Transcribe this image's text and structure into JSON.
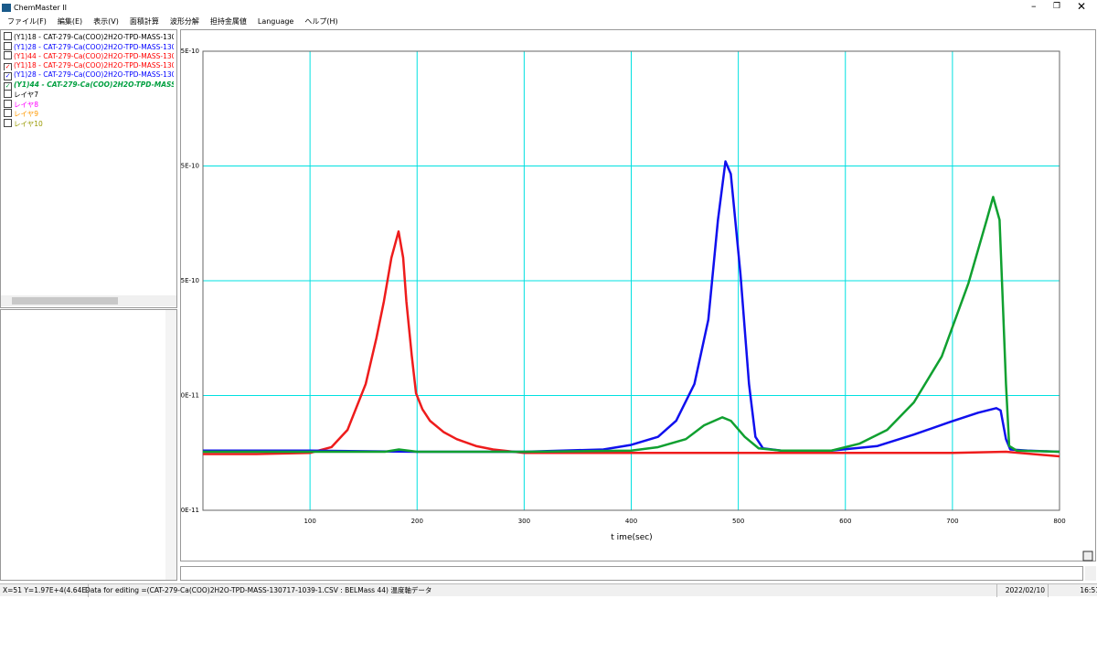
{
  "window": {
    "title": "ChemMaster II"
  },
  "menu": [
    "ファイル(F)",
    "編集(E)",
    "表示(V)",
    "面積計算",
    "波形分解",
    "担持金属値",
    "Language",
    "ヘルプ(H)"
  ],
  "layers": [
    {
      "label": "(Y1)18 - CAT-279-Ca(COO)2H2O-TPD-MASS-130717-",
      "checked": false,
      "color": "#000000"
    },
    {
      "label": "(Y1)28 - CAT-279-Ca(COO)2H2O-TPD-MASS-130717-",
      "checked": false,
      "color": "#0000ff"
    },
    {
      "label": "(Y1)44 - CAT-279-Ca(COO)2H2O-TPD-MASS-130717-",
      "checked": false,
      "color": "#ff0000"
    },
    {
      "label": "(Y1)18 - CAT-279-Ca(COO)2H2O-TPD-MASS-130717-",
      "checked": true,
      "color": "#ff0000"
    },
    {
      "label": "(Y1)28 - CAT-279-Ca(COO)2H2O-TPD-MASS-130717-",
      "checked": true,
      "color": "#0000ff"
    },
    {
      "label": "(Y1)44 - CAT-279-Ca(COO)2H2O-TPD-MASS-1",
      "checked": true,
      "color": "#00a040"
    },
    {
      "label": "レイヤ7",
      "checked": false,
      "color": "#000000"
    },
    {
      "label": "レイヤ8",
      "checked": false,
      "color": "#ff00ff"
    },
    {
      "label": "レイヤ9",
      "checked": false,
      "color": "#ff9900"
    },
    {
      "label": "レイヤ10",
      "checked": false,
      "color": "#999900"
    }
  ],
  "chart_data": {
    "type": "line",
    "x_label": "t ime(sec)",
    "xlim": [
      0,
      800
    ],
    "xticks": [
      100,
      200,
      300,
      400,
      500,
      600,
      700,
      800
    ],
    "ylim": [
      -5e-11,
      3.5e-10
    ],
    "yticks": [
      {
        "value": -5e-11,
        "label": "-5.0E-11"
      },
      {
        "value": 5e-11,
        "label": "5.0E-11"
      },
      {
        "value": 1.5e-10,
        "label": "1.5E-10"
      },
      {
        "value": 2.5e-10,
        "label": "2.5E-10"
      },
      {
        "value": 3.5e-10,
        "label": "3.5E-10"
      }
    ],
    "grid": true,
    "grid_color": "#00e0e0",
    "series": [
      {
        "color": "#ee1c1c",
        "x": [
          0,
          50,
          100,
          120,
          135,
          152,
          162,
          169,
          176,
          182.7,
          187,
          190,
          195,
          199,
          205,
          212,
          225,
          237,
          255,
          271,
          300,
          400,
          500,
          600,
          700,
          750,
          800
        ],
        "values": [
          -1e-12,
          -1e-12,
          0,
          5e-12,
          2e-11,
          6e-11,
          1e-10,
          1.32e-10,
          1.7e-10,
          1.93e-10,
          1.7e-10,
          1.32e-10,
          8.5e-11,
          5.2e-11,
          3.8e-11,
          2.8e-11,
          1.8e-11,
          1.2e-11,
          6e-12,
          3e-12,
          0,
          0,
          0,
          0,
          0,
          1e-12,
          -3e-12
        ]
      },
      {
        "color": "#1010ee",
        "x": [
          0,
          100,
          200,
          300,
          374,
          400,
          425,
          442,
          459,
          472,
          481,
          488,
          493,
          502,
          510,
          516,
          523,
          540,
          587,
          630,
          664,
          698,
          724,
          741,
          745,
          750,
          754,
          770,
          800
        ],
        "values": [
          2e-12,
          2e-12,
          1e-12,
          1e-12,
          3e-12,
          7e-12,
          1.4e-11,
          2.8e-11,
          6e-11,
          1.16e-10,
          2.03e-10,
          2.54e-10,
          2.43e-10,
          1.56e-10,
          6e-11,
          1.4e-11,
          4e-12,
          2e-12,
          2e-12,
          6e-12,
          1.6e-11,
          2.7e-11,
          3.5e-11,
          3.9e-11,
          3.7e-11,
          1.2e-11,
          3e-12,
          2e-12,
          1e-12
        ]
      },
      {
        "color": "#10a030",
        "x": [
          0,
          100,
          170,
          183,
          200,
          300,
          400,
          425,
          451,
          468,
          485,
          493,
          506,
          519,
          540,
          587,
          613,
          639,
          664,
          690,
          715,
          732,
          738,
          744,
          747,
          750,
          753,
          760,
          800
        ],
        "values": [
          1e-12,
          1e-12,
          1e-12,
          3e-12,
          1e-12,
          1e-12,
          2e-12,
          5e-12,
          1.2e-11,
          2.4e-11,
          3.1e-11,
          2.8e-11,
          1.4e-11,
          4e-12,
          2e-12,
          2e-12,
          8e-12,
          2e-11,
          4.4e-11,
          8.4e-11,
          1.48e-10,
          2.03e-10,
          2.23e-10,
          2.03e-10,
          1.32e-10,
          6e-11,
          6e-12,
          2e-12,
          1e-12
        ]
      }
    ]
  },
  "status": {
    "cursor": "X=51 Y=1.97E+4(4.64E+1)",
    "message": "Data for editing =(CAT-279-Ca(COO)2H2O-TPD-MASS-130717-1039-1.CSV : BELMass 44) 温度軸データ",
    "date": "2022/02/10",
    "time": "16:51"
  }
}
